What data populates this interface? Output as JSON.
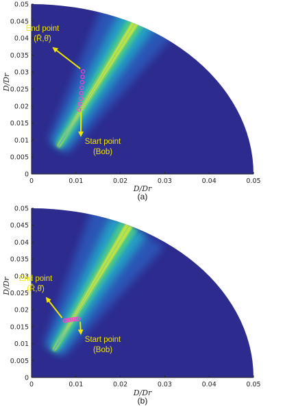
{
  "colors": {
    "background": "#2d2b8e",
    "annotation_text": "#f2e600",
    "arrow": "#f2e600",
    "marker": "#ff3fd0",
    "axis": "#222222"
  },
  "chart_data": [
    {
      "type": "heatmap",
      "caption": "(a)",
      "xlabel": "D/D_r",
      "ylabel": "D/D_r",
      "xlim": [
        0,
        0.05
      ],
      "ylim": [
        0,
        0.05
      ],
      "x_ticks": [
        "0",
        "0.01",
        "0.02",
        "0.03",
        "0.04",
        "0.05"
      ],
      "y_ticks": [
        "0",
        "0.005",
        "0.01",
        "0.015",
        "0.02",
        "0.025",
        "0.03",
        "0.035",
        "0.04",
        "0.045",
        "0.05"
      ],
      "domain": "quarter disk, radius 0.05",
      "hot_band": {
        "from": [
          0.006,
          0.008
        ],
        "to": [
          0.026,
          0.05
        ]
      },
      "markers": [
        {
          "x": 0.0107,
          "y": 0.019
        },
        {
          "x": 0.0109,
          "y": 0.0206
        },
        {
          "x": 0.0111,
          "y": 0.0222
        },
        {
          "x": 0.0112,
          "y": 0.0238
        },
        {
          "x": 0.0113,
          "y": 0.0254
        },
        {
          "x": 0.0114,
          "y": 0.027
        },
        {
          "x": 0.0115,
          "y": 0.0286
        },
        {
          "x": 0.0116,
          "y": 0.0302
        }
      ],
      "annotations": [
        {
          "id": "end",
          "lines": [
            "End point",
            "(R̄,θ̄)"
          ],
          "point": [
            0.0116,
            0.0302
          ]
        },
        {
          "id": "start",
          "lines": [
            "Start point",
            "(Bob)"
          ],
          "point": [
            0.0107,
            0.019
          ]
        }
      ]
    },
    {
      "type": "heatmap",
      "caption": "(b)",
      "xlabel": "D/D_r",
      "ylabel": "D/D_r",
      "xlim": [
        0,
        0.05
      ],
      "ylim": [
        0,
        0.05
      ],
      "x_ticks": [
        "0",
        "0.01",
        "0.02",
        "0.03",
        "0.04",
        "0.05"
      ],
      "y_ticks": [
        "0",
        "0.005",
        "0.01",
        "0.015",
        "0.02",
        "0.025",
        "0.03",
        "0.035",
        "0.04",
        "0.045",
        "0.05"
      ],
      "domain": "quarter disk, radius 0.05",
      "hot_band": {
        "from": [
          0.005,
          0.008
        ],
        "to": [
          0.022,
          0.045
        ]
      },
      "markers": [
        {
          "x": 0.0075,
          "y": 0.0168
        },
        {
          "x": 0.008,
          "y": 0.0169
        },
        {
          "x": 0.0085,
          "y": 0.017
        },
        {
          "x": 0.009,
          "y": 0.0171
        },
        {
          "x": 0.0095,
          "y": 0.0172
        },
        {
          "x": 0.01,
          "y": 0.0172
        },
        {
          "x": 0.0105,
          "y": 0.0173
        }
      ],
      "annotations": [
        {
          "id": "end",
          "lines": [
            "End point",
            "(R̂,θ̂)"
          ],
          "point": [
            0.0075,
            0.0168
          ]
        },
        {
          "id": "start",
          "lines": [
            "Start point",
            "(Bob)"
          ],
          "point": [
            0.0105,
            0.0173
          ]
        }
      ]
    }
  ]
}
